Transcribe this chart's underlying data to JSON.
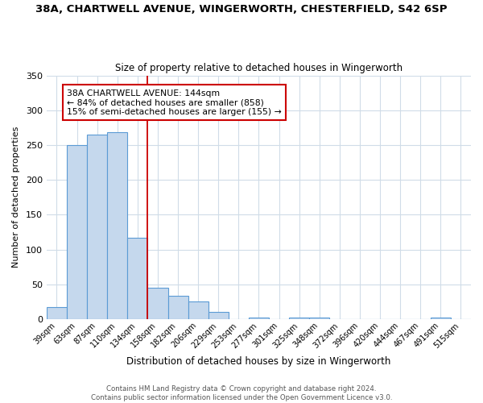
{
  "title": "38A, CHARTWELL AVENUE, WINGERWORTH, CHESTERFIELD, S42 6SP",
  "subtitle": "Size of property relative to detached houses in Wingerworth",
  "xlabel": "Distribution of detached houses by size in Wingerworth",
  "ylabel": "Number of detached properties",
  "bin_labels": [
    "39sqm",
    "63sqm",
    "87sqm",
    "110sqm",
    "134sqm",
    "158sqm",
    "182sqm",
    "206sqm",
    "229sqm",
    "253sqm",
    "277sqm",
    "301sqm",
    "325sqm",
    "348sqm",
    "372sqm",
    "396sqm",
    "420sqm",
    "444sqm",
    "467sqm",
    "491sqm",
    "515sqm"
  ],
  "bar_heights": [
    17,
    250,
    265,
    268,
    117,
    45,
    33,
    25,
    10,
    0,
    2,
    0,
    2,
    2,
    0,
    0,
    0,
    0,
    0,
    2,
    0
  ],
  "bar_color": "#c5d8ed",
  "bar_edge_color": "#5b9bd5",
  "marker_bin_index": 4,
  "marker_line_color": "#cc0000",
  "annotation_text": "38A CHARTWELL AVENUE: 144sqm\n← 84% of detached houses are smaller (858)\n15% of semi-detached houses are larger (155) →",
  "annotation_box_color": "#ffffff",
  "annotation_box_edge_color": "#cc0000",
  "ylim": [
    0,
    350
  ],
  "yticks": [
    0,
    50,
    100,
    150,
    200,
    250,
    300,
    350
  ],
  "footer_line1": "Contains HM Land Registry data © Crown copyright and database right 2024.",
  "footer_line2": "Contains public sector information licensed under the Open Government Licence v3.0.",
  "background_color": "#ffffff",
  "grid_color": "#d0dce8",
  "title_fontsize": 9.5,
  "subtitle_fontsize": 8.5,
  "ylabel_fontsize": 8,
  "xlabel_fontsize": 8.5,
  "ytick_fontsize": 8,
  "xtick_fontsize": 7,
  "annot_fontsize": 7.8,
  "footer_fontsize": 6.2
}
